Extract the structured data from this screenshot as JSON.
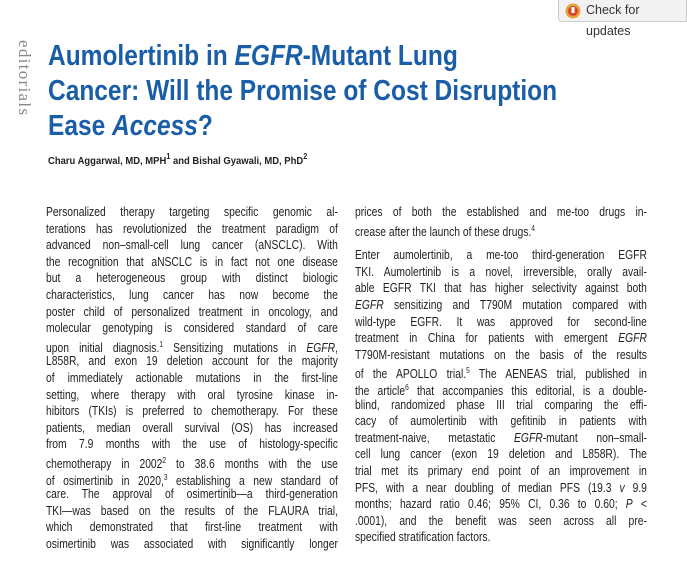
{
  "header": {
    "button": "Check for updates",
    "section": "editorials",
    "title": [
      [
        {
          "text": "Aumolertinib in "
        },
        {
          "text": "EGFR",
          "style": "i"
        },
        {
          "text": "-Mutant Lung"
        }
      ],
      "Cancer: Will the Promise of Cost Disruption",
      [
        {
          "text": "Ease "
        },
        {
          "text": "Access",
          "style": "i"
        },
        {
          "text": "?"
        }
      ]
    ],
    "authors": [
      {
        "text": "Charu Aggarwal, MD, MPH"
      },
      {
        "text": "1",
        "style": "sup"
      },
      {
        "text": " and Bishal Gyawali, MD, PhD"
      },
      {
        "text": "2",
        "style": "sup"
      }
    ]
  },
  "body": {
    "left": [
      {
        "lines": [
          "Personalized therapy targeting specific genomic al-",
          "terations has revolutionized the treatment paradigm of",
          "advanced non–small-cell lung cancer (aNSCLC). With",
          "the recognition that aNSCLC is in fact not one disease",
          "but a heterogeneous group with distinct biologic",
          "characteristics, lung cancer has now become the",
          "poster child of personalized treatment in oncology, and",
          "molecular genotyping is considered standard of care",
          [
            {
              "text": "upon initial diagnosis."
            },
            {
              "text": "1",
              "style": "sup"
            },
            {
              "text": " Sensitizing mutations in "
            },
            {
              "text": "EGFR",
              "style": "i"
            },
            {
              "text": ","
            }
          ],
          "L858R, and exon 19 deletion account for the majority",
          "of immediately actionable mutations in the first-line",
          "setting, where therapy with oral tyrosine kinase in-",
          "hibitors (TKIs) is preferred to chemotherapy. For these",
          "patients, median overall survival (OS) has increased",
          "from 7.9 months with the use of histology-specific",
          [
            {
              "text": "chemotherapy in 2002"
            },
            {
              "text": "2",
              "style": "sup"
            },
            {
              "text": " to 38.6 months with the use"
            }
          ],
          [
            {
              "text": "of osimertinib in 2020,"
            },
            {
              "text": "3",
              "style": "sup"
            },
            {
              "text": " establishing a new standard of"
            }
          ],
          "care. The approval of osimertinib—a third-generation",
          "TKI—was based on the results of the FLAURA trial,",
          "which demonstrated that first-line treatment with",
          "osimertinib was associated with significantly longer"
        ],
        "continues": true
      }
    ],
    "right": [
      {
        "lines": [
          "prices of both the established and me-too drugs in-",
          [
            {
              "text": "crease after the launch of these drugs."
            },
            {
              "text": "4",
              "style": "sup"
            }
          ]
        ]
      },
      {
        "lines": [
          "Enter aumolertinib, a me-too third-generation EGFR",
          "TKI. Aumolertinib is a novel, irreversible, orally avail-",
          "able EGFR TKI that has higher selectivity against both",
          [
            {
              "text": "EGFR",
              "style": "i"
            },
            {
              "text": " sensitizing and T790M mutation compared with"
            }
          ],
          "wild-type EGFR. It was approved for second-line",
          [
            {
              "text": "treatment in China for patients with emergent "
            },
            {
              "text": "EGFR",
              "style": "i"
            }
          ],
          "T790M-resistant mutations on the basis of the results",
          [
            {
              "text": "of the APOLLO trial."
            },
            {
              "text": "5",
              "style": "sup"
            },
            {
              "text": " The AENEAS trial, published in"
            }
          ],
          [
            {
              "text": "the article"
            },
            {
              "text": "6",
              "style": "sup"
            },
            {
              "text": " that accompanies this editorial, is a double-"
            }
          ],
          "blind, randomized phase III trial comparing the effi-",
          "cacy of aumolertinib with gefitinib in patients with",
          [
            {
              "text": "treatment-naive, metastatic "
            },
            {
              "text": "EGFR",
              "style": "i"
            },
            {
              "text": "-mutant non–small-"
            }
          ],
          "cell lung cancer (exon 19 deletion and L858R). The",
          "trial met its primary end point of an improvement in",
          [
            {
              "text": "PFS, with a near doubling of median PFS (19.3 "
            },
            {
              "text": "v",
              "style": "i"
            },
            {
              "text": " 9.9"
            }
          ],
          [
            {
              "text": "months; hazard ratio 0.46; 95% CI, 0.36 to 0.60; "
            },
            {
              "text": "P",
              "style": "i"
            },
            {
              "text": " <"
            }
          ],
          ".0001), and the benefit was seen across all pre-",
          "specified stratification factors."
        ]
      }
    ]
  }
}
